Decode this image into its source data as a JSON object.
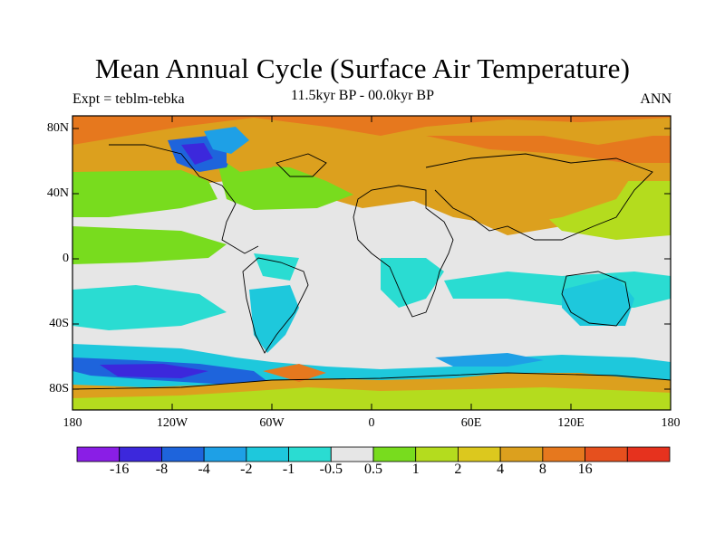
{
  "title": "Mean Annual Cycle (Surface Air Temperature)",
  "experiment": "Expt = teblm-tebka",
  "period": "11.5kyr BP - 00.0kyr BP",
  "season": "ANN",
  "lat_labels": [
    "80N",
    "40N",
    "0",
    "40S",
    "80S"
  ],
  "lon_labels": [
    "180",
    "120W",
    "60W",
    "0",
    "60E",
    "120E",
    "180"
  ],
  "colorbar": {
    "colors": [
      "#8a1ee6",
      "#3c28dc",
      "#1e64dc",
      "#1ea0e6",
      "#1ec8dc",
      "#2adcd2",
      "#e6e6e6",
      "#78dc1e",
      "#b4dc1e",
      "#dcc81e",
      "#dca01e",
      "#e6781e",
      "#e6501e",
      "#e6321e"
    ],
    "labels": [
      "-16",
      "-8",
      "-4",
      "-2",
      "-1",
      "-0.5",
      "0.5",
      "1",
      "2",
      "4",
      "8",
      "16"
    ]
  }
}
